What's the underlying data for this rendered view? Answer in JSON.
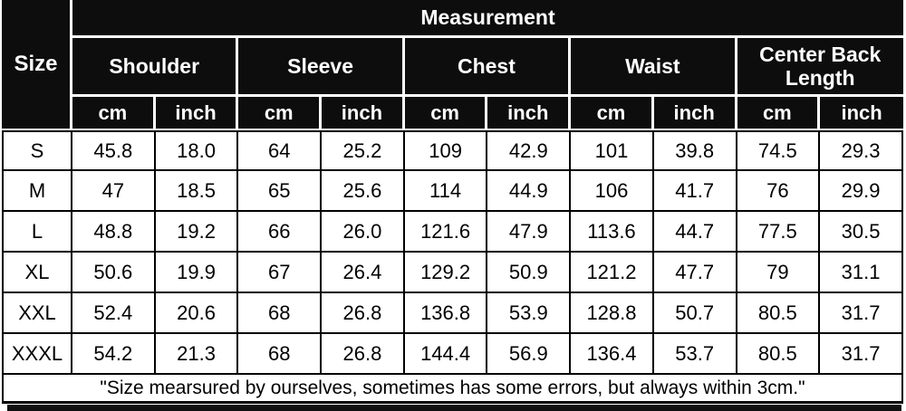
{
  "colors": {
    "header_bg": "#0d0d0d",
    "header_text": "#ffffff",
    "body_bg": "#ffffff",
    "body_text": "#000000",
    "border": "#000000"
  },
  "size_chart": {
    "corner_label": "Size",
    "title": "Measurement",
    "groups": [
      {
        "label": "Shoulder"
      },
      {
        "label": "Sleeve"
      },
      {
        "label": "Chest"
      },
      {
        "label": "Waist"
      },
      {
        "label": "Center Back Length"
      }
    ],
    "units": {
      "cm": "cm",
      "inch": "inch"
    },
    "rows": [
      {
        "size": "S",
        "values": [
          "45.8",
          "18.0",
          "64",
          "25.2",
          "109",
          "42.9",
          "101",
          "39.8",
          "74.5",
          "29.3"
        ]
      },
      {
        "size": "M",
        "values": [
          "47",
          "18.5",
          "65",
          "25.6",
          "114",
          "44.9",
          "106",
          "41.7",
          "76",
          "29.9"
        ]
      },
      {
        "size": "L",
        "values": [
          "48.8",
          "19.2",
          "66",
          "26.0",
          "121.6",
          "47.9",
          "113.6",
          "44.7",
          "77.5",
          "30.5"
        ]
      },
      {
        "size": "XL",
        "values": [
          "50.6",
          "19.9",
          "67",
          "26.4",
          "129.2",
          "50.9",
          "121.2",
          "47.7",
          "79",
          "31.1"
        ]
      },
      {
        "size": "XXL",
        "values": [
          "52.4",
          "20.6",
          "68",
          "26.8",
          "136.8",
          "53.9",
          "128.8",
          "50.7",
          "80.5",
          "31.7"
        ]
      },
      {
        "size": "XXXL",
        "values": [
          "54.2",
          "21.3",
          "68",
          "26.8",
          "144.4",
          "56.9",
          "136.4",
          "53.7",
          "80.5",
          "31.7"
        ]
      }
    ],
    "footnote": "\"Size mearsured by ourselves, sometimes has some errors, but always within 3cm.\""
  },
  "chart_data": {
    "type": "table",
    "title": "Measurement",
    "columns": [
      "Size",
      "Shoulder cm",
      "Shoulder inch",
      "Sleeve cm",
      "Sleeve inch",
      "Chest cm",
      "Chest inch",
      "Waist cm",
      "Waist inch",
      "Center Back Length cm",
      "Center Back Length inch"
    ],
    "rows": [
      [
        "S",
        45.8,
        18.0,
        64,
        25.2,
        109,
        42.9,
        101,
        39.8,
        74.5,
        29.3
      ],
      [
        "M",
        47,
        18.5,
        65,
        25.6,
        114,
        44.9,
        106,
        41.7,
        76,
        29.9
      ],
      [
        "L",
        48.8,
        19.2,
        66,
        26.0,
        121.6,
        47.9,
        113.6,
        44.7,
        77.5,
        30.5
      ],
      [
        "XL",
        50.6,
        19.9,
        67,
        26.4,
        129.2,
        50.9,
        121.2,
        47.7,
        79,
        31.1
      ],
      [
        "XXL",
        52.4,
        20.6,
        68,
        26.8,
        136.8,
        53.9,
        128.8,
        50.7,
        80.5,
        31.7
      ],
      [
        "XXXL",
        54.2,
        21.3,
        68,
        26.8,
        144.4,
        56.9,
        136.4,
        53.7,
        80.5,
        31.7
      ]
    ],
    "footnote": "\"Size mearsured by ourselves, sometimes has some errors, but always within 3cm.\""
  }
}
